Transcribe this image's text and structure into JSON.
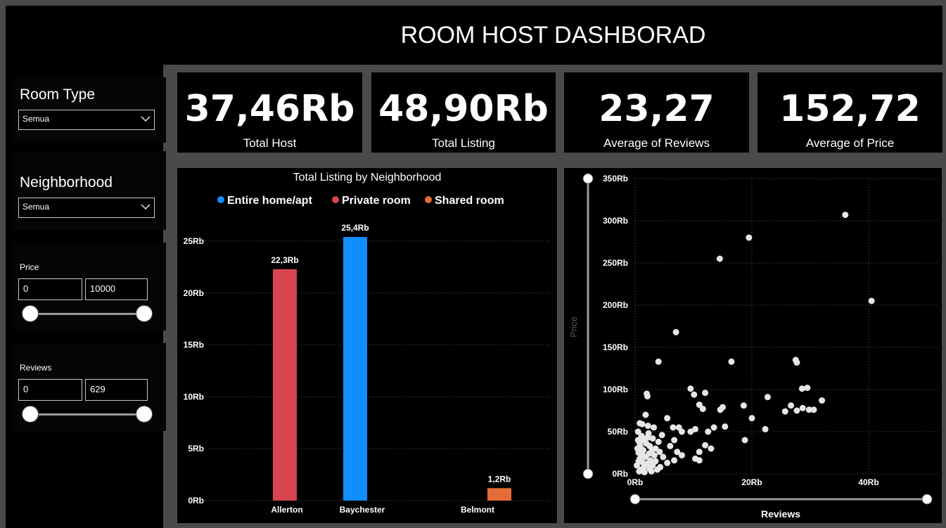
{
  "header": {
    "title": "ROOM HOST DASHBORAD"
  },
  "filters": {
    "room_type": {
      "title": "Room Type",
      "selected": "Semua"
    },
    "neighborhood": {
      "title": "Neighborhood",
      "selected": "Semua"
    },
    "price": {
      "title": "Price",
      "min": "0",
      "max": "10000"
    },
    "reviews": {
      "title": "Reviews",
      "min": "0",
      "max": "629"
    }
  },
  "kpis": [
    {
      "value": "37,46Rb",
      "label": "Total Host"
    },
    {
      "value": "48,90Rb",
      "label": "Total Listing"
    },
    {
      "value": "23,27",
      "label": "Average of Reviews"
    },
    {
      "value": "152,72",
      "label": "Average of Price"
    }
  ],
  "colors": {
    "background": "#000000",
    "page": "#4a4a4a",
    "entire_home": "#118DFF",
    "private_room": "#D64550",
    "shared_room": "#E66C37",
    "scatter_point": "#E6E6E6"
  },
  "chart_data": [
    {
      "type": "bar",
      "title": "Total Listing by Neighborhood",
      "categories": [
        "Allerton",
        "Baychester",
        "Belmont"
      ],
      "series": [
        {
          "name": "Entire home/apt",
          "color": "#118DFF",
          "values": [
            0,
            25400,
            0
          ]
        },
        {
          "name": "Private room",
          "color": "#D64550",
          "values": [
            22300,
            0,
            0
          ]
        },
        {
          "name": "Shared room",
          "color": "#E66C37",
          "values": [
            0,
            0,
            1200
          ]
        }
      ],
      "data_labels": [
        "22,3Rb",
        "25,4Rb",
        "1,2Rb"
      ],
      "y_ticks": [
        "0Rb",
        "5Rb",
        "10Rb",
        "15Rb",
        "20Rb",
        "25Rb"
      ],
      "ylim": [
        0,
        25000
      ],
      "legend_position": "top-center",
      "grid": true
    },
    {
      "type": "scatter",
      "xlabel": "Reviews",
      "ylabel": "Price",
      "x_ticks": [
        "0Rb",
        "20Rb",
        "40Rb"
      ],
      "y_ticks": [
        "0Rb",
        "50Rb",
        "100Rb",
        "150Rb",
        "200Rb",
        "250Rb",
        "300Rb",
        "350Rb"
      ],
      "xlim": [
        0,
        50000
      ],
      "ylim": [
        0,
        350000
      ],
      "grid": true,
      "points": [
        [
          36000,
          307000
        ],
        [
          19500,
          280000
        ],
        [
          14500,
          255000
        ],
        [
          40500,
          205000
        ],
        [
          7000,
          168000
        ],
        [
          4000,
          133000
        ],
        [
          16500,
          133000
        ],
        [
          27500,
          135000
        ],
        [
          27700,
          132000
        ],
        [
          2000,
          95000
        ],
        [
          2100,
          92000
        ],
        [
          9500,
          101000
        ],
        [
          10100,
          94000
        ],
        [
          12000,
          96000
        ],
        [
          11000,
          82000
        ],
        [
          11600,
          77000
        ],
        [
          14600,
          76000
        ],
        [
          15000,
          79000
        ],
        [
          18600,
          81000
        ],
        [
          20000,
          66000
        ],
        [
          22700,
          91000
        ],
        [
          25700,
          74000
        ],
        [
          26700,
          81000
        ],
        [
          27700,
          75000
        ],
        [
          28600,
          101000
        ],
        [
          29500,
          102000
        ],
        [
          29800,
          76000
        ],
        [
          30600,
          76000
        ],
        [
          32000,
          87000
        ],
        [
          28700,
          78000
        ],
        [
          5500,
          66000
        ],
        [
          6500,
          55000
        ],
        [
          7500,
          55000
        ],
        [
          8000,
          50000
        ],
        [
          9500,
          50000
        ],
        [
          10300,
          53000
        ],
        [
          12500,
          50000
        ],
        [
          13500,
          55000
        ],
        [
          15400,
          56000
        ],
        [
          22300,
          53000
        ],
        [
          18800,
          40000
        ],
        [
          12000,
          34000
        ],
        [
          13000,
          30000
        ],
        [
          11000,
          26000
        ],
        [
          10300,
          18000
        ],
        [
          11000,
          16000
        ],
        [
          7200,
          26000
        ],
        [
          8000,
          22000
        ],
        [
          6700,
          16000
        ],
        [
          5500,
          13000
        ],
        [
          4800,
          20000
        ],
        [
          3000,
          42000
        ],
        [
          4000,
          38000
        ],
        [
          3500,
          30000
        ],
        [
          2500,
          33000
        ],
        [
          4600,
          46000
        ],
        [
          3200,
          55000
        ],
        [
          1800,
          70000
        ],
        [
          1200,
          59000
        ],
        [
          2200,
          57000
        ],
        [
          800,
          60000
        ],
        [
          6700,
          40000
        ],
        [
          6000,
          33000
        ],
        [
          1000,
          5000
        ],
        [
          1500,
          8000
        ],
        [
          2000,
          12000
        ],
        [
          2500,
          6000
        ],
        [
          3000,
          10000
        ],
        [
          1200,
          14000
        ],
        [
          800,
          18000
        ],
        [
          1800,
          20000
        ],
        [
          2600,
          16000
        ],
        [
          3500,
          15000
        ],
        [
          600,
          25000
        ],
        [
          1400,
          28000
        ],
        [
          2400,
          24000
        ],
        [
          900,
          32000
        ],
        [
          1900,
          36000
        ],
        [
          500,
          40000
        ],
        [
          1100,
          45000
        ],
        [
          300,
          10000
        ],
        [
          700,
          3000
        ],
        [
          1600,
          2000
        ],
        [
          2800,
          3000
        ],
        [
          3800,
          5000
        ],
        [
          4300,
          8000
        ],
        [
          500,
          50000
        ],
        [
          2100,
          43000
        ],
        [
          3300,
          22000
        ],
        [
          4200,
          26000
        ],
        [
          2900,
          28000
        ],
        [
          1300,
          22000
        ],
        [
          600,
          15000
        ],
        [
          400,
          30000
        ],
        [
          800,
          36000
        ],
        [
          1500,
          40000
        ],
        [
          2300,
          48000
        ]
      ]
    }
  ]
}
